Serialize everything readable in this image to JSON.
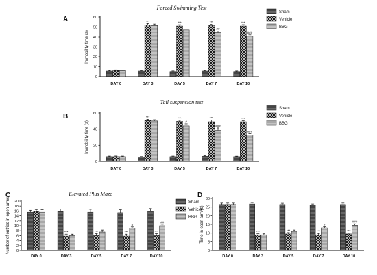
{
  "chart_data": [
    {
      "panel": "A",
      "type": "bar",
      "title": "Forced Swimming Test",
      "ylabel": "Immobility time (s)",
      "xlabel": "",
      "ylim": [
        0,
        60
      ],
      "yticks": [
        0,
        10,
        20,
        30,
        40,
        50,
        60
      ],
      "categories": [
        "DAY 0",
        "DAY 3",
        "DAY 5",
        "DAY 7",
        "DAY 10"
      ],
      "legend": "right",
      "series": [
        {
          "name": "Sham",
          "values": [
            5.5,
            5.5,
            5,
            5.5,
            5
          ],
          "errors": [
            0.6,
            0.6,
            0.6,
            0.6,
            0.6
          ],
          "annotations": [
            "",
            "",
            "",
            "",
            ""
          ]
        },
        {
          "name": "Vehicle",
          "values": [
            6,
            52,
            51,
            51.5,
            51
          ],
          "errors": [
            0.7,
            1.5,
            1.3,
            1.2,
            1.4
          ],
          "annotations": [
            "",
            "***",
            "***",
            "***",
            "***"
          ]
        },
        {
          "name": "BBG",
          "values": [
            6,
            51.5,
            47,
            44.5,
            41
          ],
          "errors": [
            0.6,
            1.5,
            1.0,
            1.3,
            1.2
          ],
          "annotations": [
            "",
            "",
            "",
            "##",
            "###"
          ]
        }
      ]
    },
    {
      "panel": "B",
      "type": "bar",
      "title": "Tail suspension test",
      "ylabel": "Immobility time (s)",
      "xlabel": "",
      "ylim": [
        0,
        60
      ],
      "yticks": [
        0,
        20,
        40,
        60
      ],
      "categories": [
        "DAY 0",
        "DAY 3",
        "DAY 5",
        "DAY 7",
        "DAY 10"
      ],
      "legend": "right",
      "series": [
        {
          "name": "Sham",
          "values": [
            6,
            5.5,
            6,
            6.5,
            6
          ],
          "errors": [
            0.7,
            0.6,
            0.7,
            0.7,
            0.6
          ],
          "annotations": [
            "",
            "",
            "",
            "",
            ""
          ]
        },
        {
          "name": "Vehicle",
          "values": [
            6,
            50.5,
            49.5,
            49,
            49
          ],
          "errors": [
            0.8,
            1.5,
            1.3,
            2.0,
            1.2
          ],
          "annotations": [
            "",
            "***",
            "***",
            "***",
            "***"
          ]
        },
        {
          "name": "BBG",
          "values": [
            6,
            50,
            44,
            38.5,
            32.5
          ],
          "errors": [
            0.7,
            1.5,
            2.5,
            3.0,
            1.6
          ],
          "annotations": [
            "",
            "",
            "#",
            "###",
            "###"
          ]
        }
      ]
    },
    {
      "panel": "C",
      "type": "bar",
      "title": "Elevated Plus Maze",
      "ylabel": "Number of entries in open arms",
      "xlabel": "",
      "ylim": [
        0,
        20
      ],
      "yticks": [
        0,
        2,
        4,
        6,
        8,
        10,
        12,
        14,
        16,
        18,
        20
      ],
      "categories": [
        "DAY 0",
        "DAY 3",
        "DAY 5",
        "DAY 7",
        "DAY 10"
      ],
      "legend": "right",
      "series": [
        {
          "name": "Sham",
          "values": [
            15.5,
            15.8,
            15.5,
            15.3,
            16
          ],
          "errors": [
            0.8,
            1.0,
            1.2,
            1.2,
            1.0
          ],
          "annotations": [
            "",
            "",
            "",
            "",
            ""
          ]
        },
        {
          "name": "Vehicle",
          "values": [
            15.8,
            5.8,
            6,
            5.8,
            6
          ],
          "errors": [
            0.8,
            0.8,
            0.8,
            0.8,
            0.8
          ],
          "annotations": [
            "",
            "***",
            "***",
            "***",
            "***"
          ]
        },
        {
          "name": "BBG",
          "values": [
            15.5,
            6,
            7.5,
            9,
            10
          ],
          "errors": [
            1.0,
            0.6,
            0.8,
            0.5,
            0.6
          ],
          "annotations": [
            "",
            "",
            "",
            "#",
            "##"
          ]
        }
      ]
    },
    {
      "panel": "D",
      "type": "bar",
      "title": "",
      "ylabel": "Time in open arm (s)",
      "xlabel": "",
      "ylim": [
        0,
        30
      ],
      "yticks": [
        0,
        5,
        10,
        15,
        20,
        25,
        30
      ],
      "categories": [
        "DAY 0",
        "DAY 3",
        "DAY 5",
        "DAY 7",
        "DAY 10"
      ],
      "legend": "none",
      "series": [
        {
          "name": "Sham",
          "values": [
            26.5,
            26.8,
            26.5,
            26,
            26.5
          ],
          "errors": [
            0.8,
            0.8,
            0.7,
            0.8,
            0.8
          ],
          "annotations": [
            "",
            "",
            "",
            "",
            ""
          ]
        },
        {
          "name": "Vehicle",
          "values": [
            26.5,
            9,
            9.5,
            9,
            9.5
          ],
          "errors": [
            0.8,
            0.6,
            0.8,
            0.8,
            0.6
          ],
          "annotations": [
            "",
            "***",
            "***",
            "***",
            "***"
          ]
        },
        {
          "name": "BBG",
          "values": [
            26.5,
            9,
            11,
            13,
            14.5
          ],
          "errors": [
            0.8,
            0.6,
            0.8,
            0.6,
            0.8
          ],
          "annotations": [
            "",
            "",
            "",
            "#",
            "###"
          ]
        }
      ]
    }
  ],
  "colors": {
    "Sham": "#3a3a3a",
    "Vehicle": "#1a1a1a",
    "BBG": "#9a9a9a",
    "axis": "#111111"
  }
}
